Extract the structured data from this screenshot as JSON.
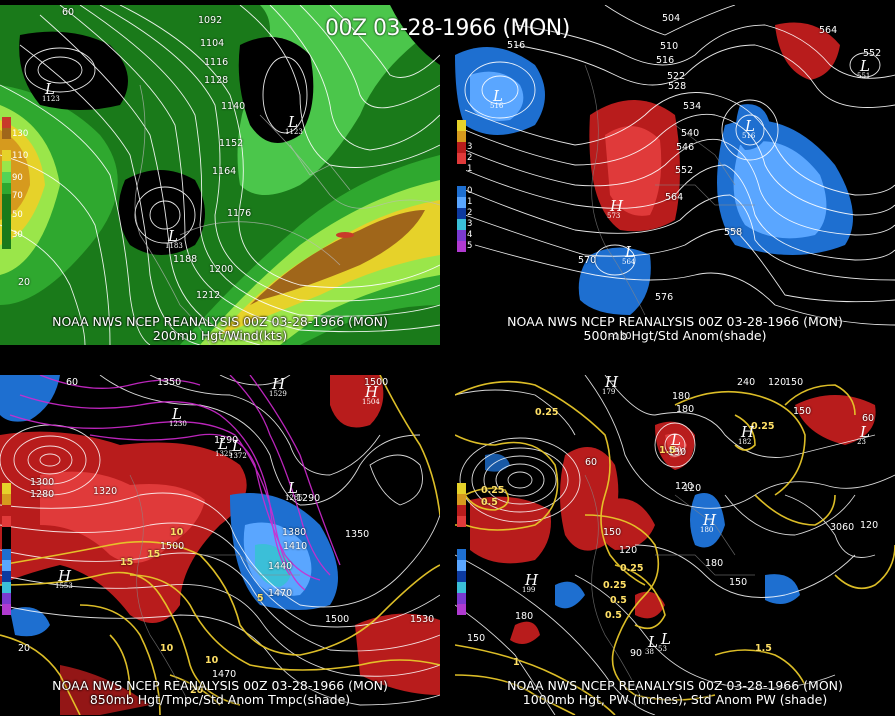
{
  "main_title": "00Z 03-28-1966 (MON)",
  "panels": [
    {
      "caption_line1": "NOAA NWS NCEP REANALYSIS 00Z 03-28-1966 (MON)",
      "caption_line2": "200mb Hgt/Wind(kts)",
      "colorbar_labels": [
        "130",
        "110",
        "90",
        "70",
        "50",
        "30",
        "20"
      ],
      "contour_labels": [
        "1092",
        "1104",
        "1116",
        "1128",
        "1140",
        "1152",
        "1164",
        "1176",
        "1188",
        "1200",
        "1212"
      ],
      "low_values": [
        "1123",
        "1123",
        "1183"
      ],
      "axis_labels": [
        "60",
        "20"
      ],
      "colors": [
        "#1a7a1a",
        "#2fa82f",
        "#55d455",
        "#9ae64a",
        "#e6d22a",
        "#d69a1e",
        "#a0661a",
        "#c83a2a"
      ]
    },
    {
      "caption_line1": "NOAA NWS NCEP REANALYSIS 00Z 03-28-1966 (MON)",
      "caption_line2": "500mb Hgt/Std Anom(shade)",
      "colorbar_labels": [
        "3",
        "2",
        "1",
        "0",
        "1",
        "2",
        "3",
        "4",
        "5"
      ],
      "contour_labels": [
        "504",
        "510",
        "516",
        "522",
        "528",
        "534",
        "540",
        "546",
        "552",
        "558",
        "564",
        "570",
        "576",
        "564",
        "552",
        "516"
      ],
      "low_values": [
        "516",
        "516",
        "564",
        "551"
      ],
      "high_values": [
        "573"
      ],
      "axis_labels": [
        "-130"
      ]
    },
    {
      "caption_line1": "NOAA NWS NCEP REANALYSIS 00Z 03-28-1966 (MON)",
      "caption_line2": "850mb Hgt/Tmpc/Std Anom Tmpc(shade)",
      "contour_labels": [
        "1350",
        "1320",
        "1280",
        "1300",
        "1290",
        "1380",
        "1410",
        "1440",
        "1470",
        "1500",
        "1500",
        "1530",
        "1350",
        "1500",
        "1290",
        "1470"
      ],
      "temp_labels": [
        "10",
        "15",
        "10",
        "5",
        "15",
        "20",
        "10"
      ],
      "low_values": [
        "1230",
        "1325",
        "1372",
        "1285"
      ],
      "high_values": [
        "1553",
        "1504",
        "1529"
      ],
      "axis_labels": [
        "60",
        "20"
      ]
    },
    {
      "caption_line1": "NOAA NWS NCEP REANALYSIS 00Z 03-28-1966 (MON)",
      "caption_line2": "1000mb Hgt, PW (inches), Std Anom PW (shade)",
      "contour_labels": [
        "240",
        "120",
        "180",
        "150",
        "60",
        "180",
        "120",
        "150",
        "120",
        "180",
        "150",
        "3060",
        "120",
        "150",
        "180",
        "90",
        "60",
        "130",
        "150",
        "120"
      ],
      "pw_labels": [
        "0.25",
        "0.25",
        "0.5",
        "0.25",
        "0.5",
        "1",
        "1.5",
        "0.25",
        "1.5",
        "0.25",
        "0.5"
      ],
      "low_values": [
        "130",
        "38",
        "53",
        "23"
      ],
      "high_values": [
        "179",
        "199",
        "182",
        "180"
      ],
      "axis_labels": [
        "150",
        "180"
      ]
    }
  ]
}
